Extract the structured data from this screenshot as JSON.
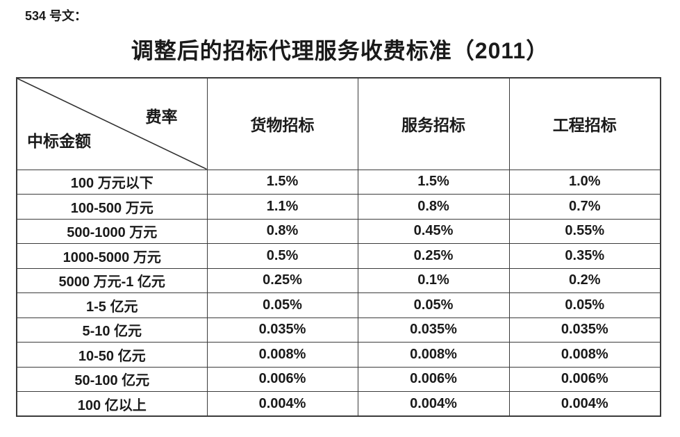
{
  "page": {
    "doc_label": "534 号文：",
    "title": "调整后的招标代理服务收费标准（2011）"
  },
  "table": {
    "corner": {
      "top_right_label": "费率",
      "bottom_left_label": "中标金额"
    },
    "columns": [
      "货物招标",
      "服务招标",
      "工程招标"
    ],
    "rows": [
      {
        "label": "100 万元以下",
        "values": [
          "1.5%",
          "1.5%",
          "1.0%"
        ]
      },
      {
        "label": "100-500 万元",
        "values": [
          "1.1%",
          "0.8%",
          "0.7%"
        ]
      },
      {
        "label": "500-1000 万元",
        "values": [
          "0.8%",
          "0.45%",
          "0.55%"
        ]
      },
      {
        "label": "1000-5000 万元",
        "values": [
          "0.5%",
          "0.25%",
          "0.35%"
        ]
      },
      {
        "label": "5000 万元-1 亿元",
        "values": [
          "0.25%",
          "0.1%",
          "0.2%"
        ]
      },
      {
        "label": "1-5 亿元",
        "values": [
          "0.05%",
          "0.05%",
          "0.05%"
        ]
      },
      {
        "label": "5-10 亿元",
        "values": [
          "0.035%",
          "0.035%",
          "0.035%"
        ]
      },
      {
        "label": "10-50 亿元",
        "values": [
          "0.008%",
          "0.008%",
          "0.008%"
        ]
      },
      {
        "label": "50-100 亿元",
        "values": [
          "0.006%",
          "0.006%",
          "0.006%"
        ]
      },
      {
        "label": "100 亿以上",
        "values": [
          "0.004%",
          "0.004%",
          "0.004%"
        ]
      }
    ]
  },
  "colors": {
    "background": "#ffffff",
    "text": "#1a1a1a",
    "border": "#3a3a3a"
  }
}
